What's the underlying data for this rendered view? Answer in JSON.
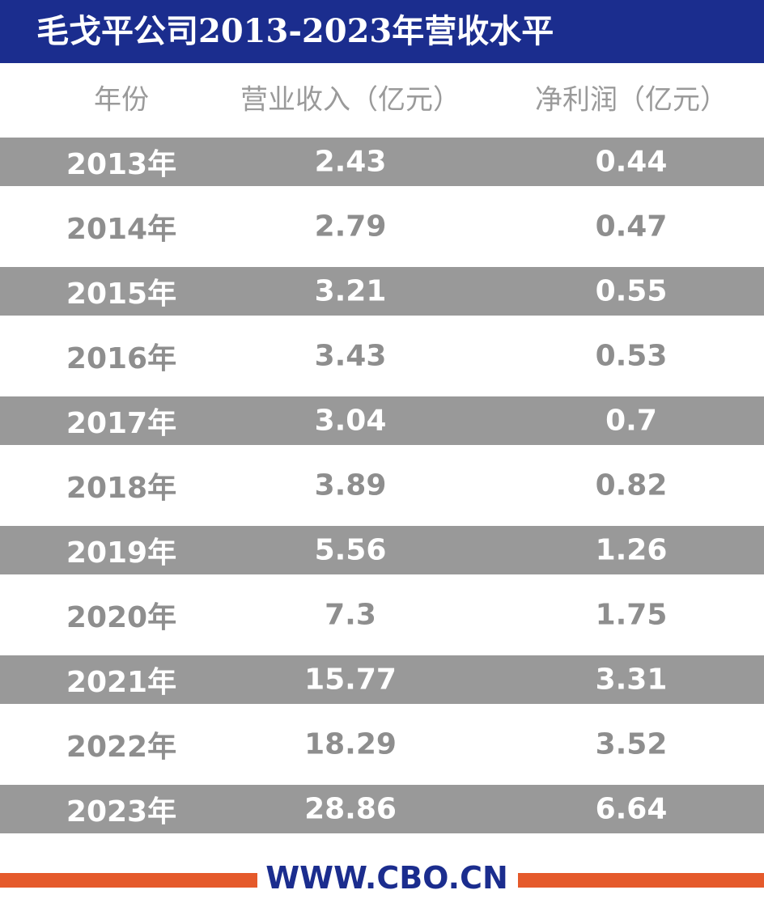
{
  "header": {
    "title": "毛戈平公司2013-2023年营收水平"
  },
  "table": {
    "columns": [
      "年份",
      "营业收入（亿元）",
      "净利润（亿元）"
    ],
    "rows": [
      [
        "2013年",
        "2.43",
        "0.44"
      ],
      [
        "2014年",
        "2.79",
        "0.47"
      ],
      [
        "2015年",
        "3.21",
        "0.55"
      ],
      [
        "2016年",
        "3.43",
        "0.53"
      ],
      [
        "2017年",
        "3.04",
        "0.7"
      ],
      [
        "2018年",
        "3.89",
        "0.82"
      ],
      [
        "2019年",
        "5.56",
        "1.26"
      ],
      [
        "2020年",
        "7.3",
        "1.75"
      ],
      [
        "2021年",
        "15.77",
        "3.31"
      ],
      [
        "2022年",
        "18.29",
        "3.52"
      ],
      [
        "2023年",
        "28.86",
        "6.64"
      ]
    ]
  },
  "footer": {
    "site": "WWW.CBO.CN"
  }
}
